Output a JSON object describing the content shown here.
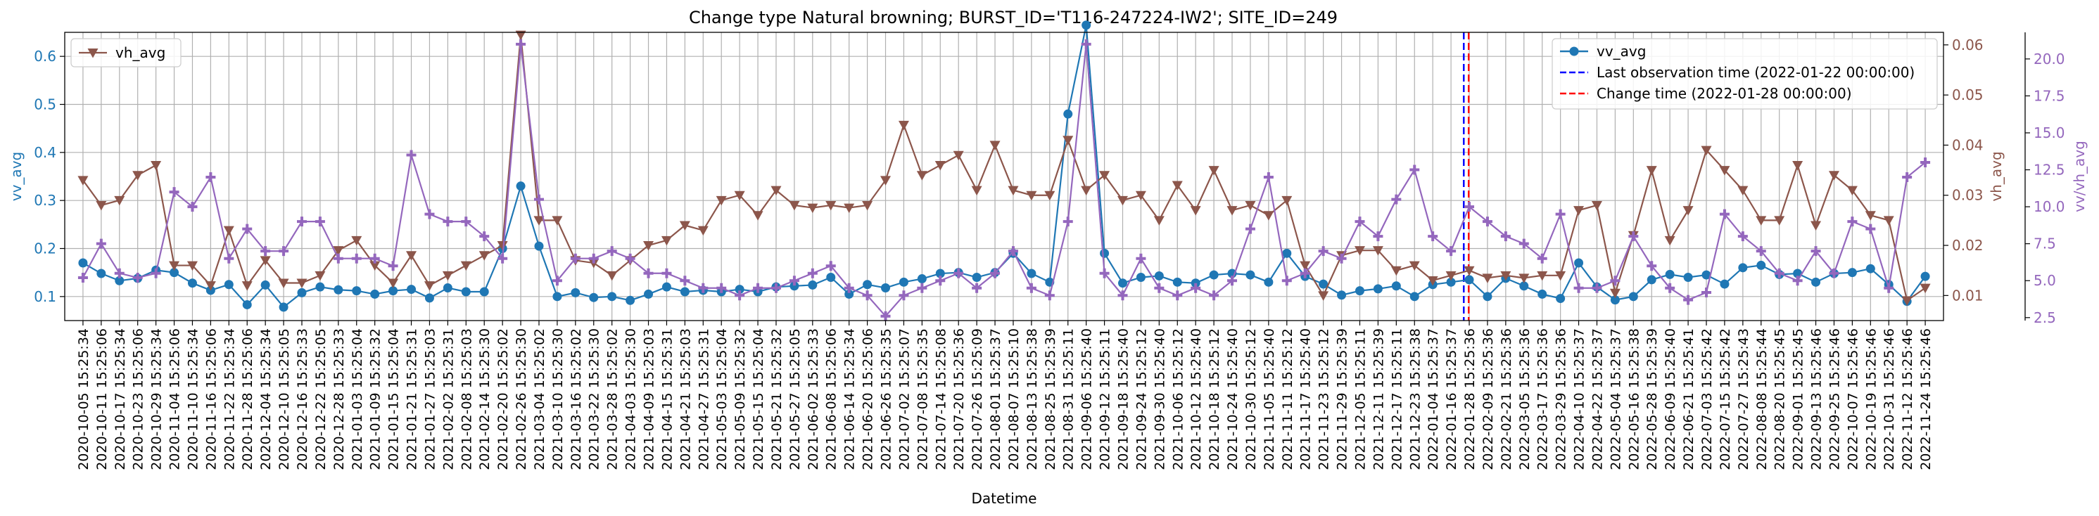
{
  "chart_data": {
    "type": "line",
    "title": "Change type Natural browning; BURST_ID='T116-247224-IW2'; SITE_ID=249",
    "xlabel": "Datetime",
    "ylabel_left": "vv_avg",
    "ylabel_right1": "vh_avg",
    "ylabel_right2": "vv/vh_avg",
    "grid": true,
    "ylim_left": [
      0.05,
      0.65
    ],
    "ylim_right1": [
      0.005,
      0.0625
    ],
    "ylim_right2": [
      2.3,
      21.8
    ],
    "yticks_left": [
      "0.1",
      "0.2",
      "0.3",
      "0.4",
      "0.5",
      "0.6"
    ],
    "yticks_right1": [
      "0.01",
      "0.02",
      "0.03",
      "0.04",
      "0.05",
      "0.06"
    ],
    "yticks_right2": [
      "2.5",
      "5.0",
      "7.5",
      "10.0",
      "12.5",
      "15.0",
      "17.5",
      "20.0"
    ],
    "x": [
      "2020-10-05 15:25:34",
      "2020-10-11 15:25:06",
      "2020-10-17 15:25:34",
      "2020-10-23 15:25:06",
      "2020-10-29 15:25:34",
      "2020-11-04 15:25:06",
      "2020-11-10 15:25:34",
      "2020-11-16 15:25:06",
      "2020-11-22 15:25:34",
      "2020-11-28 15:25:06",
      "2020-12-04 15:25:34",
      "2020-12-10 15:25:05",
      "2020-12-16 15:25:33",
      "2020-12-22 15:25:05",
      "2020-12-28 15:25:33",
      "2021-01-03 15:25:04",
      "2021-01-09 15:25:32",
      "2021-01-15 15:25:04",
      "2021-01-21 15:25:31",
      "2021-01-27 15:25:03",
      "2021-02-02 15:25:31",
      "2021-02-08 15:25:03",
      "2021-02-14 15:25:30",
      "2021-02-20 15:25:02",
      "2021-02-26 15:25:30",
      "2021-03-04 15:25:02",
      "2021-03-10 15:25:30",
      "2021-03-16 15:25:02",
      "2021-03-22 15:25:30",
      "2021-03-28 15:25:02",
      "2021-04-03 15:25:30",
      "2021-04-09 15:25:03",
      "2021-04-15 15:25:31",
      "2021-04-21 15:25:03",
      "2021-04-27 15:25:31",
      "2021-05-03 15:25:04",
      "2021-05-09 15:25:32",
      "2021-05-15 15:25:04",
      "2021-05-21 15:25:32",
      "2021-05-27 15:25:05",
      "2021-06-02 15:25:33",
      "2021-06-08 15:25:06",
      "2021-06-14 15:25:34",
      "2021-06-20 15:25:06",
      "2021-06-26 15:25:35",
      "2021-07-02 15:25:07",
      "2021-07-08 15:25:35",
      "2021-07-14 15:25:08",
      "2021-07-20 15:25:36",
      "2021-07-26 15:25:09",
      "2021-08-01 15:25:37",
      "2021-08-07 15:25:10",
      "2021-08-13 15:25:38",
      "2021-08-25 15:25:39",
      "2021-08-31 15:25:11",
      "2021-09-06 15:25:40",
      "2021-09-12 15:25:11",
      "2021-09-18 15:25:40",
      "2021-09-24 15:25:12",
      "2021-09-30 15:25:40",
      "2021-10-06 15:25:12",
      "2021-10-12 15:25:40",
      "2021-10-18 15:25:12",
      "2021-10-24 15:25:40",
      "2021-10-30 15:25:12",
      "2021-11-05 15:25:40",
      "2021-11-11 15:25:12",
      "2021-11-17 15:25:40",
      "2021-11-23 15:25:12",
      "2021-11-29 15:25:39",
      "2021-12-05 15:25:11",
      "2021-12-11 15:25:39",
      "2021-12-17 15:25:11",
      "2021-12-23 15:25:38",
      "2022-01-04 15:25:37",
      "2022-01-16 15:25:37",
      "2022-01-28 15:25:36",
      "2022-02-09 15:25:36",
      "2022-02-21 15:25:36",
      "2022-03-05 15:25:36",
      "2022-03-17 15:25:36",
      "2022-03-29 15:25:36",
      "2022-04-10 15:25:37",
      "2022-04-22 15:25:37",
      "2022-05-04 15:25:37",
      "2022-05-16 15:25:38",
      "2022-05-28 15:25:39",
      "2022-06-09 15:25:40",
      "2022-06-21 15:25:41",
      "2022-07-03 15:25:42",
      "2022-07-15 15:25:42",
      "2022-07-27 15:25:43",
      "2022-08-08 15:25:44",
      "2022-08-20 15:25:45",
      "2022-09-01 15:25:45",
      "2022-09-13 15:25:46",
      "2022-09-25 15:25:46",
      "2022-10-07 15:25:46",
      "2022-10-19 15:25:46",
      "2022-10-31 15:25:46",
      "2022-11-12 15:25:46",
      "2022-11-24 15:25:46"
    ],
    "series": [
      {
        "name": "vv_avg",
        "axis": "left",
        "color": "#1f77b4",
        "marker": "circle",
        "values": [
          0.17,
          0.148,
          0.133,
          0.138,
          0.155,
          0.15,
          0.128,
          0.113,
          0.125,
          0.083,
          0.124,
          0.078,
          0.108,
          0.12,
          0.114,
          0.112,
          0.105,
          0.112,
          0.115,
          0.097,
          0.118,
          0.11,
          0.11,
          0.2,
          0.33,
          0.205,
          0.1,
          0.108,
          0.098,
          0.1,
          0.092,
          0.105,
          0.12,
          0.11,
          0.113,
          0.11,
          0.115,
          0.11,
          0.12,
          0.122,
          0.124,
          0.14,
          0.105,
          0.125,
          0.118,
          0.13,
          0.137,
          0.148,
          0.15,
          0.14,
          0.15,
          0.19,
          0.148,
          0.13,
          0.48,
          0.665,
          0.19,
          0.128,
          0.14,
          0.143,
          0.13,
          0.128,
          0.145,
          0.148,
          0.145,
          0.13,
          0.19,
          0.142,
          0.126,
          0.103,
          0.112,
          0.116,
          0.122,
          0.1,
          0.125,
          0.13,
          0.135,
          0.1,
          0.138,
          0.122,
          0.105,
          0.096,
          0.17,
          0.12,
          0.093,
          0.1,
          0.135,
          0.146,
          0.14,
          0.145,
          0.126,
          0.16,
          0.165,
          0.146,
          0.148,
          0.13,
          0.148,
          0.15,
          0.158,
          0.125,
          0.09,
          0.142
        ]
      },
      {
        "name": "vh_avg",
        "axis": "right1",
        "color": "#8c564b",
        "marker": "triangle-down",
        "values": [
          0.033,
          0.028,
          0.029,
          0.034,
          0.036,
          0.016,
          0.016,
          0.012,
          0.023,
          0.012,
          0.017,
          0.0125,
          0.0125,
          0.014,
          0.019,
          0.021,
          0.016,
          0.0125,
          0.018,
          0.012,
          0.014,
          0.016,
          0.018,
          0.02,
          0.062,
          0.025,
          0.025,
          0.017,
          0.0165,
          0.014,
          0.017,
          0.02,
          0.021,
          0.024,
          0.023,
          0.029,
          0.03,
          0.026,
          0.031,
          0.028,
          0.0275,
          0.028,
          0.0275,
          0.028,
          0.033,
          0.044,
          0.034,
          0.036,
          0.038,
          0.031,
          0.04,
          0.031,
          0.03,
          0.03,
          0.041,
          0.031,
          0.034,
          0.029,
          0.03,
          0.025,
          0.032,
          0.027,
          0.035,
          0.027,
          0.028,
          0.026,
          0.029,
          0.016,
          0.01,
          0.018,
          0.019,
          0.019,
          0.015,
          0.016,
          0.013,
          0.014,
          0.015,
          0.0135,
          0.014,
          0.0135,
          0.014,
          0.014,
          0.027,
          0.028,
          0.0105,
          0.022,
          0.035,
          0.021,
          0.027,
          0.039,
          0.035,
          0.031,
          0.025,
          0.025,
          0.036,
          0.024,
          0.034,
          0.031,
          0.026,
          0.025,
          0.009,
          0.0115
        ]
      },
      {
        "name": "vv/vh_avg",
        "axis": "right2",
        "color": "#9467bd",
        "marker": "plus",
        "values": [
          5.2,
          7.5,
          5.5,
          5.2,
          5.5,
          11.0,
          10.0,
          12.0,
          6.5,
          8.5,
          7.0,
          7.0,
          9.0,
          9.0,
          6.5,
          6.5,
          6.5,
          6.0,
          13.5,
          9.5,
          9.0,
          9.0,
          8.0,
          6.5,
          21.0,
          10.5,
          5.0,
          6.5,
          6.5,
          7.0,
          6.5,
          5.5,
          5.5,
          5.0,
          4.5,
          4.5,
          4.0,
          4.5,
          4.5,
          5.0,
          5.5,
          6.0,
          4.5,
          4.0,
          2.6,
          4.0,
          4.5,
          5.0,
          5.5,
          4.5,
          5.5,
          7.0,
          4.5,
          4.0,
          9.0,
          21.0,
          5.5,
          4.0,
          6.5,
          4.5,
          4.0,
          4.5,
          4.0,
          5.0,
          8.5,
          12.0,
          5.0,
          5.5,
          7.0,
          6.5,
          9.0,
          8.0,
          10.5,
          12.5,
          8.0,
          7.0,
          10.0,
          9.0,
          8.0,
          7.5,
          6.5,
          9.5,
          4.5,
          4.5,
          5.0,
          8.0,
          6.0,
          4.5,
          3.7,
          4.2,
          9.5,
          8.0,
          7.0,
          5.5,
          5.0,
          7.0,
          5.5,
          9.0,
          8.5,
          4.5,
          12.0,
          13.0
        ]
      }
    ],
    "vlines": [
      {
        "label": "Last observation time (2022-01-22 00:00:00)",
        "position_between": [
          75,
          76
        ],
        "fraction": 0.7,
        "color": "#0000ff",
        "style": "dashed"
      },
      {
        "label": "Change time (2022-01-28 00:00:00)",
        "position_between": [
          75,
          76
        ],
        "fraction": 0.97,
        "color": "#ff0000",
        "style": "dashed"
      }
    ],
    "legend_left": {
      "placement": "top-left",
      "entries": [
        "vh_avg"
      ]
    },
    "legend_right": {
      "placement": "top-right",
      "entries": [
        "vv_avg",
        "Last observation time (2022-01-22 00:00:00)",
        "Change time (2022-01-28 00:00:00)"
      ]
    }
  }
}
